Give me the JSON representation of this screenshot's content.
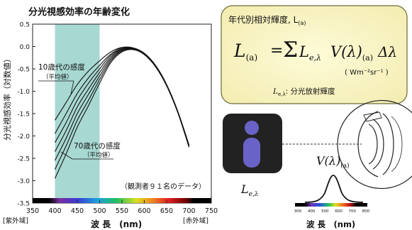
{
  "chart": {
    "title": "分光視感効率の年齢変化",
    "ylabel": "分光視感効率（対数値）",
    "xlabel": "波 長　(nm)",
    "x_left_note": "[紫外域]",
    "x_right_note": "[赤外域]",
    "x_ticks": [
      "350",
      "400",
      "450",
      "500",
      "550",
      "600",
      "650",
      "700",
      "750"
    ],
    "y_ticks": [
      "0.5",
      "0.0",
      "-0.5",
      "-1.0",
      "-1.5",
      "-2.0",
      "-2.5",
      "-3.0",
      "-3.5"
    ],
    "annotation_young": "10歳代の感度",
    "annotation_young_sub": "（平均値）",
    "annotation_old": "70歳代の感度",
    "annotation_old_sub": "（平均値）",
    "observers_note": "（観測者９１名のデータ）"
  },
  "chart_data": {
    "type": "line",
    "title": "分光視感効率の年齢変化",
    "xlabel": "波 長　(nm)",
    "ylabel": "分光視感効率（対数値）",
    "xlim": [
      350,
      750
    ],
    "ylim": [
      -3.5,
      0.5
    ],
    "highlight_band": [
      400,
      500
    ],
    "grid": false,
    "x": [
      400,
      425,
      450,
      475,
      500,
      525,
      550,
      575,
      600,
      625,
      650,
      675,
      700
    ],
    "series": [
      {
        "values": [
          -1.65,
          -1.25,
          -0.85,
          -0.55,
          -0.32,
          -0.12,
          -0.02,
          -0.03,
          -0.15,
          -0.42,
          -0.85,
          -1.45,
          -2.2
        ]
      },
      {
        "values": [
          -1.95,
          -1.5,
          -1.05,
          -0.7,
          -0.42,
          -0.17,
          -0.03,
          -0.04,
          -0.16,
          -0.43,
          -0.86,
          -1.46,
          -2.2
        ]
      },
      {
        "values": [
          -2.15,
          -1.7,
          -1.2,
          -0.82,
          -0.5,
          -0.2,
          -0.05,
          -0.04,
          -0.16,
          -0.43,
          -0.86,
          -1.46,
          -2.22
        ]
      },
      {
        "values": [
          -2.35,
          -1.88,
          -1.35,
          -0.95,
          -0.58,
          -0.24,
          -0.06,
          -0.05,
          -0.17,
          -0.44,
          -0.87,
          -1.47,
          -2.22
        ]
      },
      {
        "values": [
          -2.55,
          -2.05,
          -1.5,
          -1.07,
          -0.66,
          -0.28,
          -0.08,
          -0.05,
          -0.17,
          -0.44,
          -0.87,
          -1.47,
          -2.23
        ]
      },
      {
        "values": [
          -2.75,
          -2.22,
          -1.65,
          -1.2,
          -0.74,
          -0.32,
          -0.1,
          -0.06,
          -0.18,
          -0.45,
          -0.88,
          -1.48,
          -2.24
        ]
      },
      {
        "values": [
          -2.95,
          -2.4,
          -1.8,
          -1.32,
          -0.82,
          -0.36,
          -0.12,
          -0.07,
          -0.18,
          -0.45,
          -0.88,
          -1.48,
          -2.25
        ]
      }
    ]
  },
  "formula_box": {
    "title": "年代別相対輝度, L",
    "title_sub": "(a)",
    "lhs": "L",
    "lhs_sub": "(a)",
    "equals": "=",
    "sigma": "Σ",
    "term_L": "L",
    "term_L_sub": "e,λ",
    "term_V": "V(λ)",
    "term_V_sub": "(a)",
    "term_d": "Δλ",
    "unit": "( Wm⁻²sr⁻¹ )",
    "note_L": "L",
    "note_sub": "e,λ",
    "note_text": ": 分光放射輝度"
  },
  "illustration": {
    "source_label": "L",
    "source_label_sub": "e,λ",
    "v_label": "V(λ)",
    "v_label_sub": "(a)",
    "mini_ticks": [
      "300",
      "400",
      "500",
      "600",
      "700",
      "800"
    ],
    "mini_xlabel": "波 長　(nm)"
  },
  "colors": {
    "band": "#a8d8d2",
    "box_fill": "#fbf6c4",
    "box_border": "#6b6b3a",
    "lamp_bg": "#222222",
    "lamp_figure": "#6a63c7"
  }
}
